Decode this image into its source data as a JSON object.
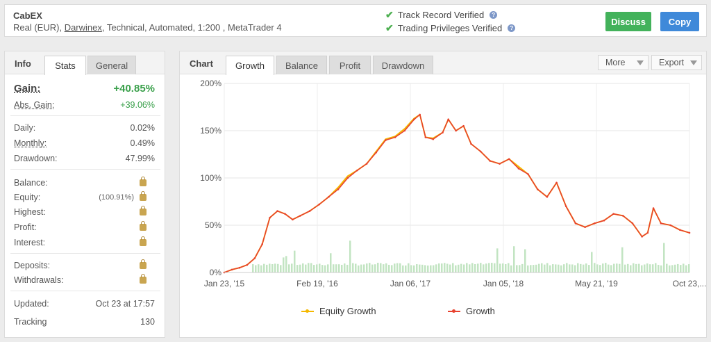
{
  "header": {
    "title": "CabEX",
    "sub_prefix": "Real (EUR), ",
    "sub_link": "Darwinex",
    "sub_suffix": ", Technical, Automated, 1:200 , MetaTrader 4",
    "verified_1": "Track Record Verified",
    "verified_2": "Trading Privileges Verified",
    "discuss_label": "Discuss",
    "copy_label": "Copy"
  },
  "left_tabs": {
    "label": "Info",
    "stats": "Stats",
    "general": "General"
  },
  "stats": {
    "gain_label": "Gain:",
    "gain_value": "+40.85%",
    "abs_gain_label": "Abs. Gain:",
    "abs_gain_value": "+39.06%",
    "daily_label": "Daily:",
    "daily_value": "0.02%",
    "monthly_label": "Monthly:",
    "monthly_value": "0.49%",
    "drawdown_label": "Drawdown:",
    "drawdown_value": "47.99%",
    "balance_label": "Balance:",
    "equity_label": "Equity:",
    "equity_pct": "(100.91%)",
    "highest_label": "Highest:",
    "profit_label": "Profit:",
    "interest_label": "Interest:",
    "deposits_label": "Deposits:",
    "withdrawals_label": "Withdrawals:",
    "updated_label": "Updated:",
    "updated_value": "Oct 23 at 17:57",
    "tracking_label": "Tracking",
    "tracking_value": "130"
  },
  "chart_tabs": {
    "label": "Chart",
    "growth": "Growth",
    "balance": "Balance",
    "profit": "Profit",
    "drawdown": "Drawdown",
    "more": "More",
    "export": "Export"
  },
  "colors": {
    "growth": "#e8422f",
    "equity": "#f5b800",
    "bars": "#c2e4c2",
    "green": "#3aa04b",
    "blue": "#3f89d9"
  },
  "chart_data": {
    "type": "line",
    "y_ticks": [
      "0%",
      "50%",
      "100%",
      "150%",
      "200%"
    ],
    "ylim": [
      0,
      200
    ],
    "x_ticks": [
      "Jan 23, '15",
      "Feb 19, '16",
      "Jan 06, '17",
      "Jan 05, '18",
      "May 21, '19",
      "Oct 23,..."
    ],
    "legend": [
      "Equity Growth",
      "Growth"
    ],
    "growth_series": {
      "name": "Growth",
      "points": [
        [
          0,
          0
        ],
        [
          0.4,
          3
        ],
        [
          0.8,
          5
        ],
        [
          1.2,
          8
        ],
        [
          1.6,
          15
        ],
        [
          2.0,
          30
        ],
        [
          2.4,
          58
        ],
        [
          2.8,
          65
        ],
        [
          3.2,
          62
        ],
        [
          3.6,
          56
        ],
        [
          4.0,
          60
        ],
        [
          4.5,
          65
        ],
        [
          5.0,
          72
        ],
        [
          5.5,
          80
        ],
        [
          6.0,
          88
        ],
        [
          6.5,
          100
        ],
        [
          7.0,
          108
        ],
        [
          7.5,
          115
        ],
        [
          8.0,
          127
        ],
        [
          8.5,
          140
        ],
        [
          9.0,
          143
        ],
        [
          9.5,
          150
        ],
        [
          10.0,
          162
        ],
        [
          10.3,
          167
        ],
        [
          10.6,
          143
        ],
        [
          11.0,
          141
        ],
        [
          11.5,
          148
        ],
        [
          11.8,
          162
        ],
        [
          12.2,
          150
        ],
        [
          12.6,
          155
        ],
        [
          13.0,
          136
        ],
        [
          13.5,
          128
        ],
        [
          14.0,
          118
        ],
        [
          14.5,
          115
        ],
        [
          15.0,
          120
        ],
        [
          15.5,
          110
        ],
        [
          16.0,
          104
        ],
        [
          16.5,
          88
        ],
        [
          17.0,
          80
        ],
        [
          17.5,
          95
        ],
        [
          18.0,
          70
        ],
        [
          18.5,
          52
        ],
        [
          19.0,
          48
        ],
        [
          19.5,
          52
        ],
        [
          20.0,
          55
        ],
        [
          20.5,
          62
        ],
        [
          21.0,
          60
        ],
        [
          21.5,
          52
        ],
        [
          22.0,
          38
        ],
        [
          22.3,
          42
        ],
        [
          22.6,
          68
        ],
        [
          23.0,
          52
        ],
        [
          23.5,
          50
        ],
        [
          24.0,
          45
        ],
        [
          24.5,
          42
        ]
      ]
    },
    "equity_series": {
      "name": "Equity Growth",
      "points": [
        [
          0,
          0
        ],
        [
          0.4,
          3
        ],
        [
          0.8,
          5
        ],
        [
          1.2,
          8
        ],
        [
          1.6,
          15
        ],
        [
          2.0,
          30
        ],
        [
          2.4,
          58
        ],
        [
          2.8,
          65
        ],
        [
          3.2,
          62
        ],
        [
          3.6,
          56
        ],
        [
          4.0,
          60
        ],
        [
          4.5,
          65
        ],
        [
          5.0,
          72
        ],
        [
          5.5,
          80
        ],
        [
          6.0,
          90
        ],
        [
          6.5,
          102
        ],
        [
          7.0,
          108
        ],
        [
          7.5,
          115
        ],
        [
          8.0,
          128
        ],
        [
          8.5,
          141
        ],
        [
          9.0,
          144
        ],
        [
          9.5,
          152
        ],
        [
          10.0,
          163
        ],
        [
          10.3,
          167
        ],
        [
          10.6,
          143
        ],
        [
          11.0,
          142
        ],
        [
          11.5,
          148
        ],
        [
          11.8,
          162
        ],
        [
          12.2,
          150
        ],
        [
          12.6,
          155
        ],
        [
          13.0,
          136
        ],
        [
          13.5,
          128
        ],
        [
          14.0,
          118
        ],
        [
          14.5,
          115
        ],
        [
          15.0,
          120
        ],
        [
          15.5,
          112
        ],
        [
          16.0,
          104
        ],
        [
          16.5,
          88
        ],
        [
          17.0,
          80
        ],
        [
          17.5,
          95
        ],
        [
          18.0,
          70
        ],
        [
          18.5,
          52
        ],
        [
          19.0,
          48
        ],
        [
          19.5,
          52
        ],
        [
          20.0,
          55
        ],
        [
          20.5,
          62
        ],
        [
          21.0,
          60
        ],
        [
          21.5,
          52
        ],
        [
          22.0,
          38
        ],
        [
          22.3,
          42
        ],
        [
          22.6,
          68
        ],
        [
          23.0,
          52
        ],
        [
          23.5,
          50
        ],
        [
          24.0,
          45
        ],
        [
          24.5,
          42
        ]
      ]
    },
    "xlim": [
      0,
      24.5
    ]
  }
}
